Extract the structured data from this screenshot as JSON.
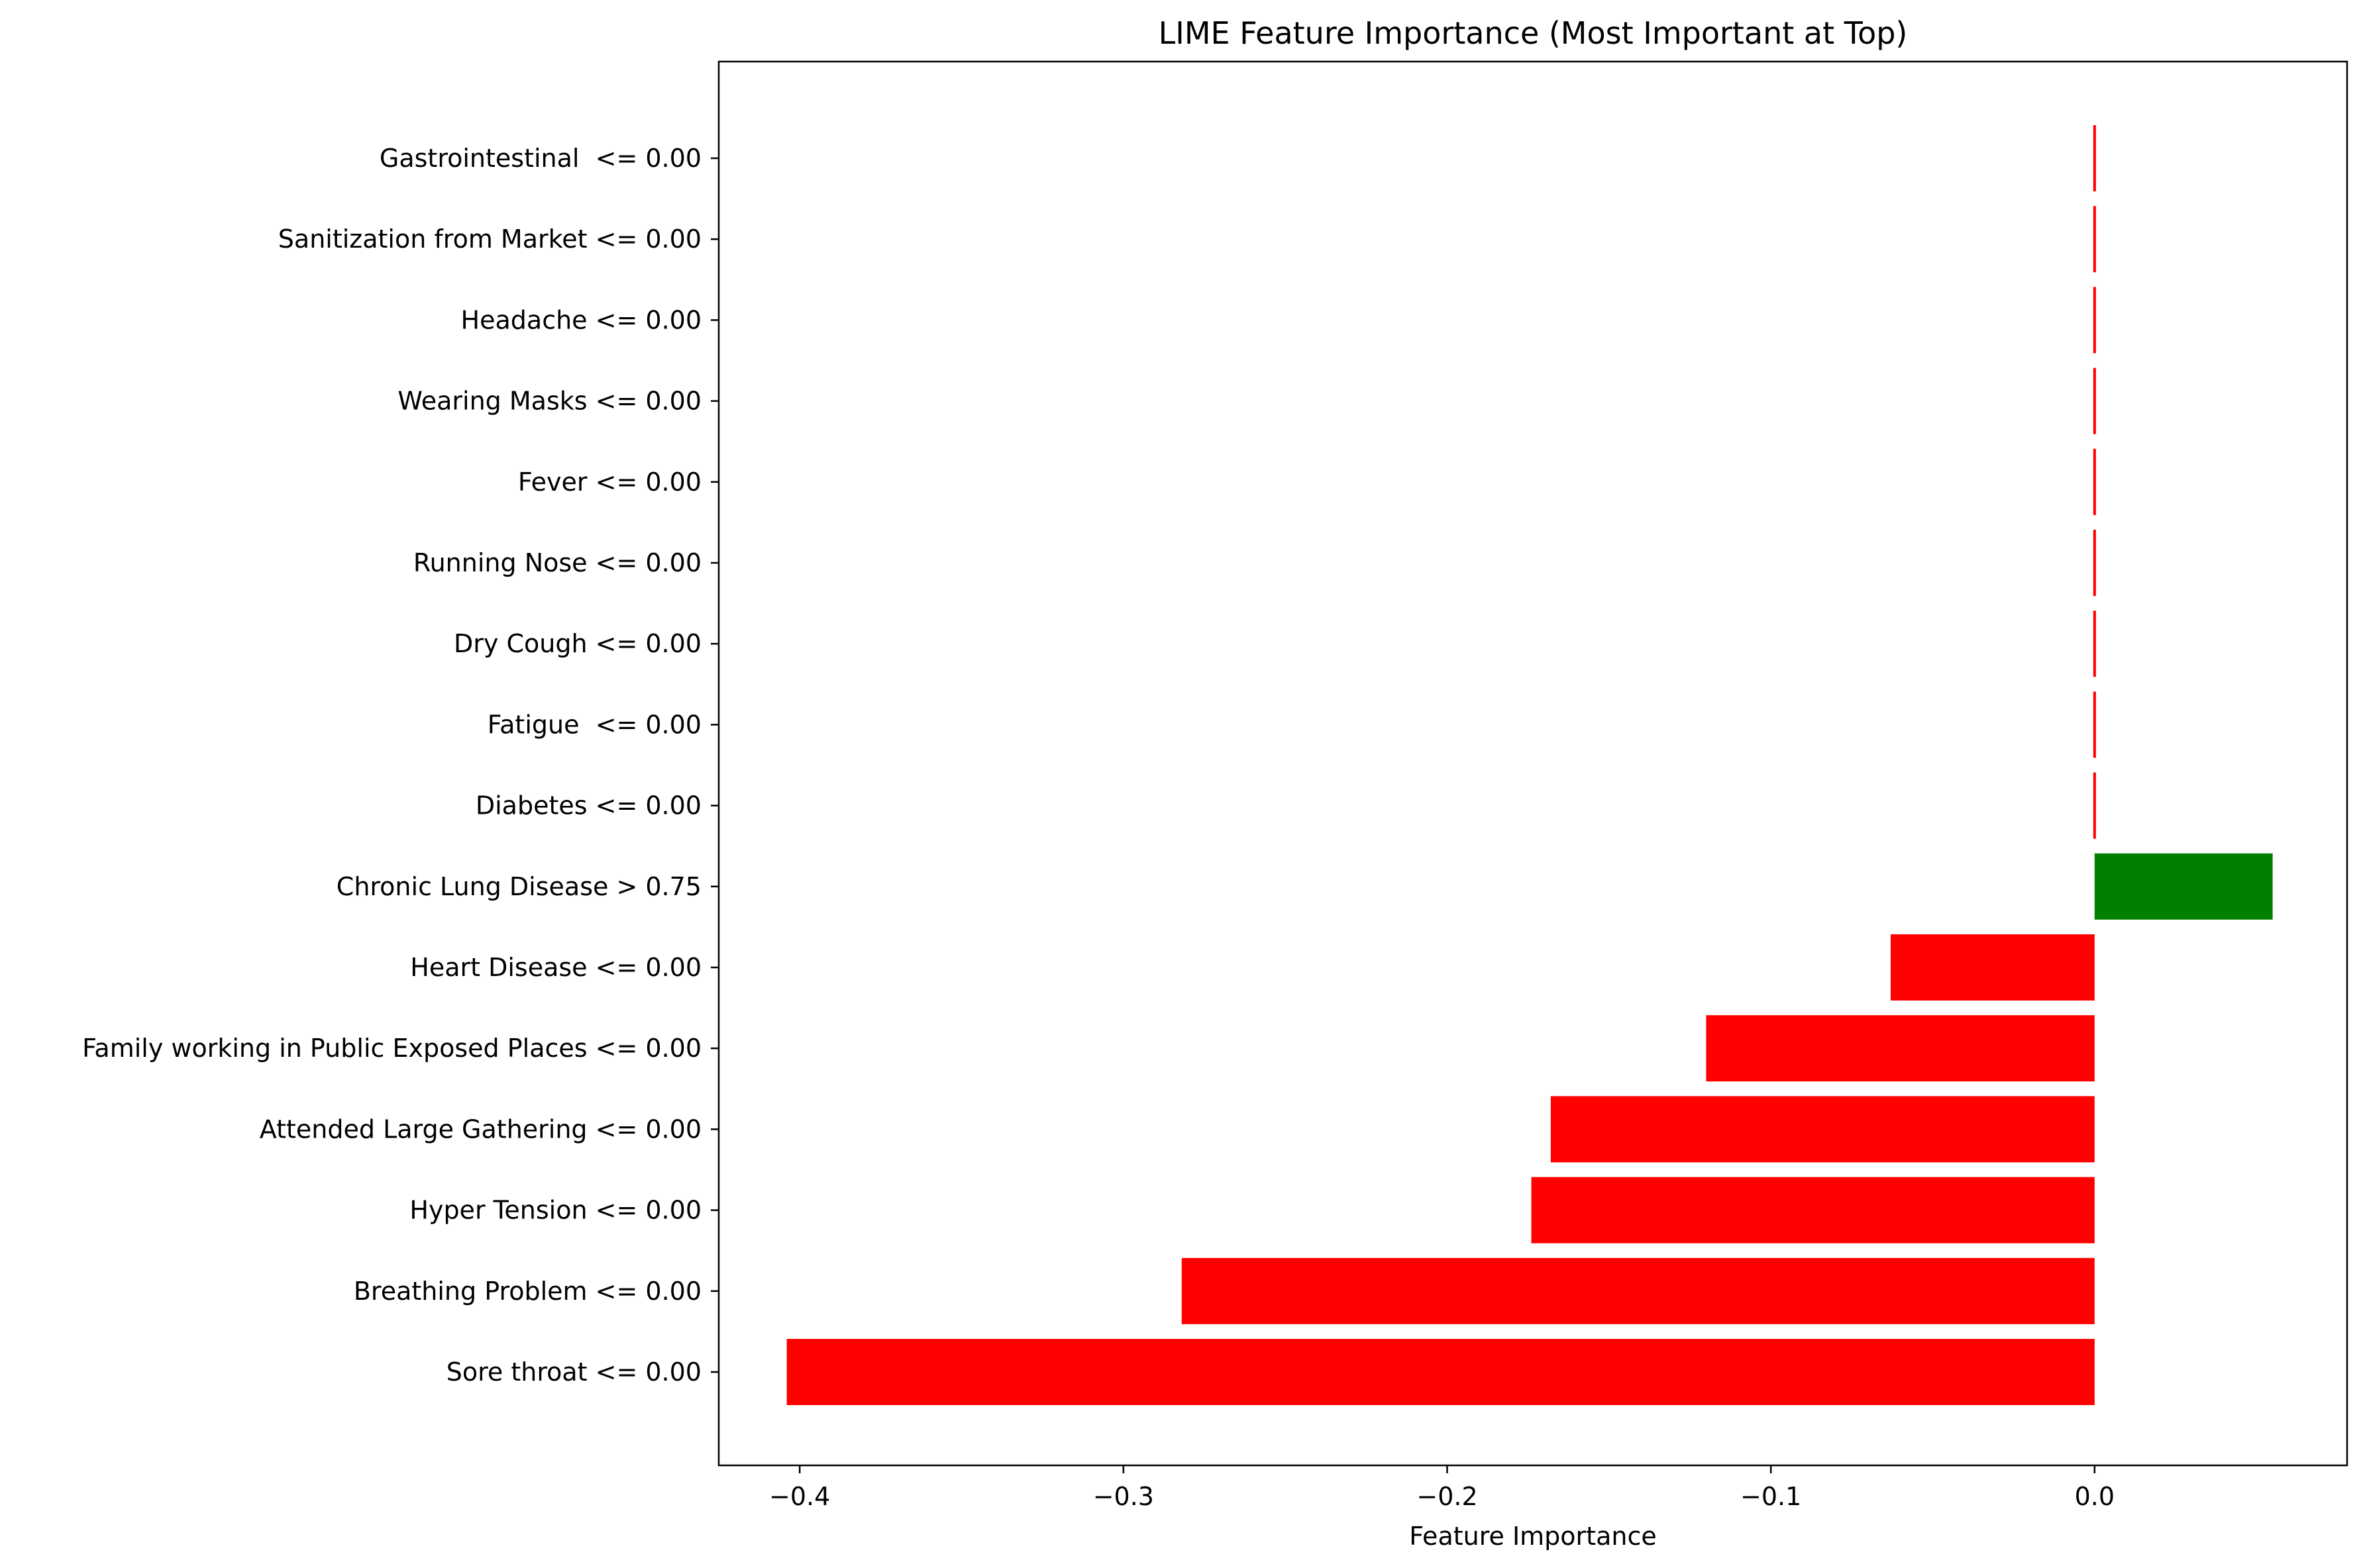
{
  "chart_data": {
    "type": "bar",
    "orientation": "horizontal",
    "title": "LIME Feature Importance (Most Important at Top)",
    "xlabel": "Feature Importance",
    "ylabel": "",
    "xlim": [
      -0.425,
      0.078
    ],
    "xticks": [
      -0.4,
      -0.3,
      -0.2,
      -0.1,
      0.0
    ],
    "xtick_labels": [
      "−0.4",
      "−0.3",
      "−0.2",
      "−0.1",
      "0.0"
    ],
    "grid": false,
    "categories": [
      "Gastrointestinal  <= 0.00",
      "Sanitization from Market <= 0.00",
      "Headache <= 0.00",
      "Wearing Masks <= 0.00",
      "Fever <= 0.00",
      "Running Nose <= 0.00",
      "Dry Cough <= 0.00",
      "Fatigue  <= 0.00",
      "Diabetes <= 0.00",
      "Chronic Lung Disease > 0.75",
      "Heart Disease <= 0.00",
      "Family working in Public Exposed Places <= 0.00",
      "Attended Large Gathering <= 0.00",
      "Hyper Tension <= 0.00",
      "Breathing Problem <= 0.00",
      "Sore throat <= 0.00"
    ],
    "values": [
      -0.0005,
      -0.0005,
      -0.0005,
      -0.0005,
      -0.0005,
      -0.0005,
      -0.0005,
      -0.0005,
      -0.0005,
      0.055,
      -0.063,
      -0.12,
      -0.168,
      -0.174,
      -0.282,
      -0.404
    ],
    "colors": {
      "positive": "#008000",
      "negative": "#ff0000"
    }
  }
}
